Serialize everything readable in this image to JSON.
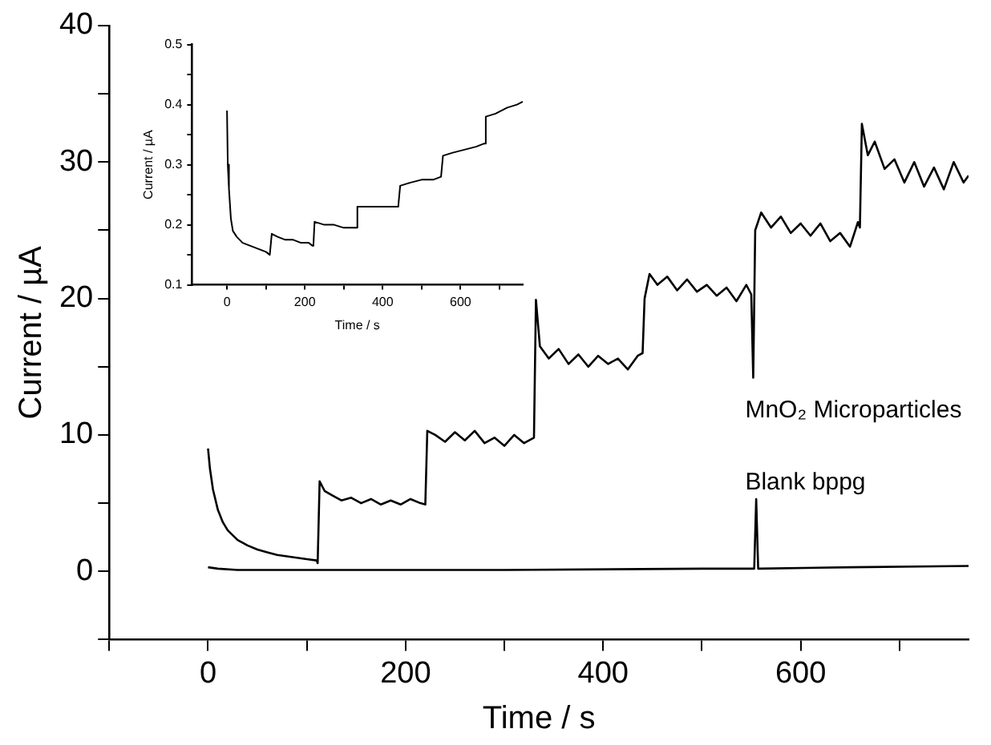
{
  "chart_data": [
    {
      "type": "line",
      "xlabel": "Time / s",
      "ylabel": "Current / µA",
      "xlim": [
        -100,
        770
      ],
      "ylim": [
        -5,
        40
      ],
      "xticks": [
        {
          "value": -100,
          "label": null
        },
        0,
        {
          "value": 100,
          "label": null
        },
        200,
        {
          "value": 300,
          "label": null
        },
        400,
        {
          "value": 500,
          "label": null
        },
        600,
        {
          "value": 700,
          "label": null
        }
      ],
      "yticks": [
        {
          "value": -5,
          "label": null
        },
        0,
        {
          "value": 5,
          "label": null
        },
        10,
        {
          "value": 15,
          "label": null
        },
        20,
        {
          "value": 25,
          "label": null
        },
        30,
        {
          "value": 35,
          "label": null
        },
        40
      ],
      "grid": false,
      "legend": false,
      "marker": "none",
      "line_style": "solid",
      "series": [
        {
          "name": "MnO₂ Microparticles",
          "color": "#000000",
          "x": [
            0,
            2,
            5,
            10,
            15,
            20,
            30,
            40,
            50,
            60,
            70,
            80,
            90,
            100,
            110,
            111,
            113,
            118,
            125,
            135,
            145,
            155,
            165,
            175,
            185,
            195,
            205,
            215,
            220,
            222,
            230,
            240,
            250,
            260,
            270,
            280,
            290,
            300,
            310,
            320,
            330,
            332,
            336,
            345,
            355,
            365,
            375,
            385,
            395,
            405,
            415,
            425,
            435,
            440,
            442,
            447,
            455,
            465,
            475,
            485,
            495,
            505,
            515,
            525,
            535,
            545,
            550,
            552,
            554,
            560,
            570,
            580,
            590,
            600,
            610,
            620,
            630,
            640,
            650,
            658,
            660,
            662,
            668,
            675,
            685,
            695,
            705,
            715,
            725,
            735,
            745,
            755,
            765,
            770
          ],
          "values": [
            9,
            7.5,
            6,
            4.5,
            3.6,
            3,
            2.3,
            1.9,
            1.6,
            1.4,
            1.2,
            1.1,
            1,
            0.9,
            0.8,
            0.6,
            6.6,
            5.9,
            5.6,
            5.2,
            5.4,
            5,
            5.3,
            4.9,
            5.2,
            4.9,
            5.3,
            5,
            4.9,
            10.3,
            10,
            9.5,
            10.2,
            9.6,
            10.3,
            9.4,
            9.8,
            9.2,
            10,
            9.4,
            9.8,
            19.9,
            16.5,
            15.6,
            16.3,
            15.2,
            15.9,
            15,
            15.8,
            15.2,
            15.6,
            14.8,
            15.8,
            16,
            20,
            21.8,
            21,
            21.6,
            20.6,
            21.4,
            20.5,
            21,
            20.2,
            20.8,
            19.8,
            21,
            20.3,
            14.2,
            25,
            26.3,
            25.2,
            26,
            24.8,
            25.5,
            24.6,
            25.5,
            24.2,
            24.8,
            23.8,
            25.6,
            25.2,
            32.8,
            30.5,
            31.5,
            29.5,
            30.2,
            28.5,
            30,
            28.2,
            29.6,
            28,
            30,
            28.5,
            29
          ]
        },
        {
          "name": "Blank bppg",
          "color": "#000000",
          "x": [
            0,
            10,
            30,
            110,
            300,
            500,
            553,
            555,
            557,
            650,
            770
          ],
          "values": [
            0.3,
            0.2,
            0.1,
            0.1,
            0.1,
            0.2,
            0.2,
            5.3,
            0.2,
            0.3,
            0.4
          ]
        }
      ]
    },
    {
      "type": "line",
      "xlabel": "Time / s",
      "ylabel": "Current / µA",
      "xlim": [
        -90,
        760
      ],
      "ylim": [
        0.1,
        0.5
      ],
      "xticks": [
        0,
        {
          "value": 100,
          "label": null
        },
        200,
        {
          "value": 300,
          "label": null
        },
        400,
        {
          "value": 500,
          "label": null
        },
        600,
        {
          "value": 700,
          "label": null
        }
      ],
      "yticks": [
        0.1,
        {
          "value": 0.15,
          "label": null
        },
        0.2,
        {
          "value": 0.25,
          "label": null
        },
        0.3,
        {
          "value": 0.35,
          "label": null
        },
        0.4,
        {
          "value": 0.45,
          "label": null
        },
        0.5
      ],
      "grid": false,
      "legend": false,
      "marker": "none",
      "line_style": "solid",
      "series": [
        {
          "color": "#000000",
          "x": [
            0,
            2,
            5,
            10,
            15,
            25,
            40,
            60,
            80,
            100,
            110,
            112,
            115,
            130,
            150,
            170,
            190,
            210,
            220,
            222,
            225,
            250,
            275,
            300,
            330,
            332,
            335,
            360,
            390,
            420,
            440,
            442,
            445,
            470,
            500,
            530,
            550,
            552,
            555,
            580,
            610,
            640,
            660,
            662,
            665,
            690,
            720,
            745,
            760
          ],
          "values": [
            0.39,
            0.3,
            0.26,
            0.21,
            0.19,
            0.18,
            0.17,
            0.165,
            0.16,
            0.155,
            0.15,
            0.15,
            0.185,
            0.18,
            0.175,
            0.175,
            0.17,
            0.17,
            0.165,
            0.165,
            0.205,
            0.2,
            0.2,
            0.195,
            0.195,
            0.195,
            0.23,
            0.23,
            0.23,
            0.23,
            0.23,
            0.23,
            0.265,
            0.27,
            0.275,
            0.275,
            0.28,
            0.28,
            0.315,
            0.32,
            0.325,
            0.33,
            0.335,
            0.335,
            0.38,
            0.385,
            0.395,
            0.4,
            0.405
          ]
        }
      ]
    }
  ]
}
